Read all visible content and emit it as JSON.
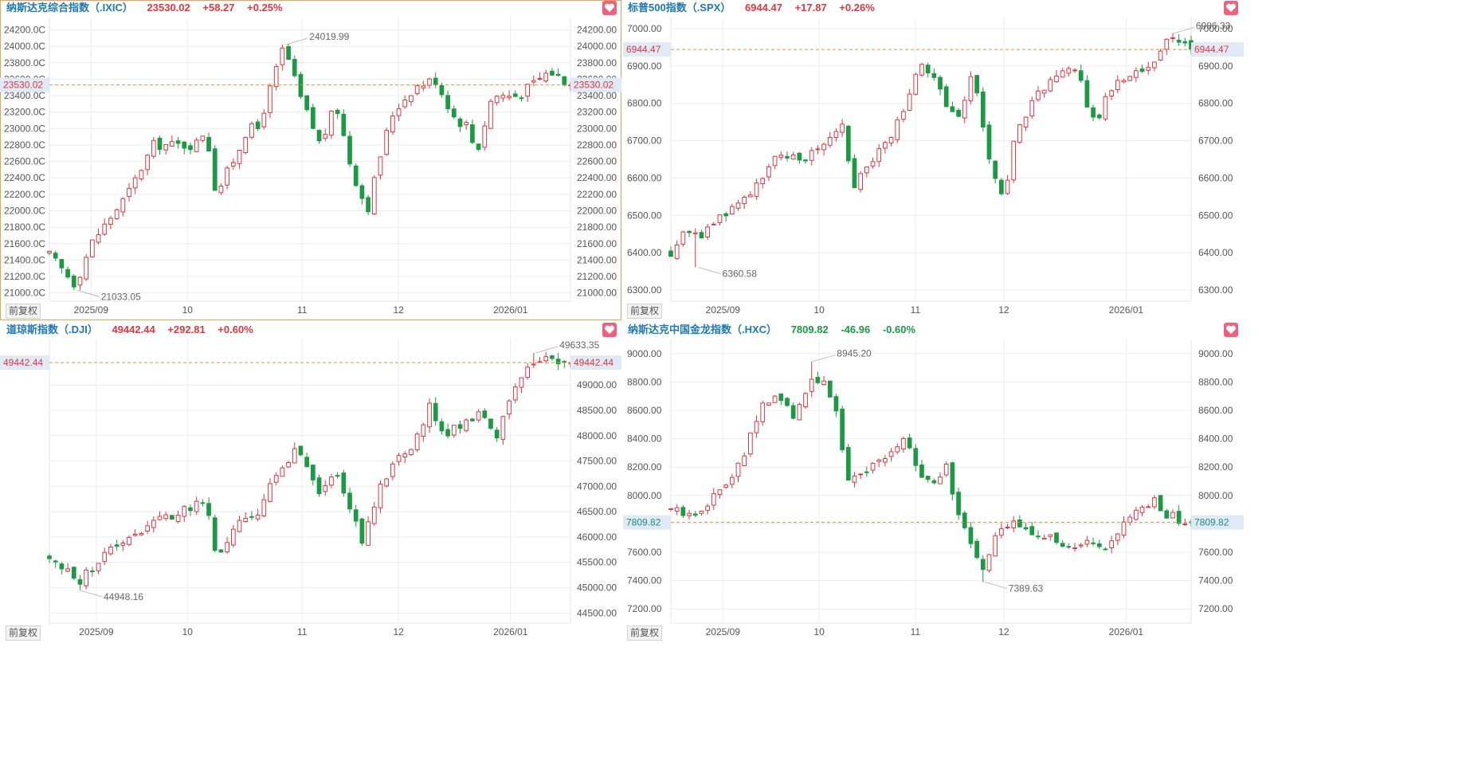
{
  "colors": {
    "up": "#e0363f",
    "down": "#1a9a43",
    "axis": "#555555",
    "grid": "#ececec",
    "ref": "#e0923a",
    "label_bg": "#dfeaf6"
  },
  "panels": [
    {
      "title": "纳斯达克综合指数（.IXIC）",
      "price": "23530.02",
      "change": "+58.27",
      "pct": "+0.25%",
      "direction": "up",
      "adj_button": "前复权",
      "favorite_icon": "heart-icon",
      "selected": true
    },
    {
      "title": "标普500指数（.SPX）",
      "price": "6944.47",
      "change": "+17.87",
      "pct": "+0.26%",
      "direction": "up",
      "adj_button": "前复权",
      "favorite_icon": "heart-icon",
      "selected": false
    },
    {
      "title": "道琼斯指数（.DJI）",
      "price": "49442.44",
      "change": "+292.81",
      "pct": "+0.60%",
      "direction": "up",
      "adj_button": "前复权",
      "favorite_icon": "heart-icon",
      "selected": false
    },
    {
      "title": "纳斯达克中国金龙指数（.HXC）",
      "price": "7809.82",
      "change": "-46.96",
      "pct": "-0.60%",
      "direction": "down",
      "adj_button": "前复权",
      "favorite_icon": "heart-icon",
      "selected": false
    }
  ],
  "chart_data": [
    {
      "type": "candlestick",
      "series_name": "纳斯达克综合指数（.IXIC）",
      "ylim": [
        20900,
        24350
      ],
      "y_ticks": [
        "24200.00",
        "24000.00",
        "23800.00",
        "23600.00",
        "23400.00",
        "23200.00",
        "23000.00",
        "22800.00",
        "22600.00",
        "22400.00",
        "22200.00",
        "22000.00",
        "21800.00",
        "21600.00",
        "21400.00",
        "21200.00",
        "21000.00"
      ],
      "left_tick_labels": [
        "24200.0C",
        "24000.0C",
        "23800.0C",
        "23600.0C",
        "23400.0C",
        "23200.0C",
        "23000.0C",
        "22800.0C",
        "22600.0C",
        "22400.0C",
        "22200.0C",
        "22000.0C",
        "21800.0C",
        "21600.0C",
        "21400.0C",
        "21200.0C",
        "21000.0C"
      ],
      "x_ticks": [
        "2025/09",
        "10",
        "11",
        "12",
        "2026/01"
      ],
      "x_tick_pos": [
        0.08,
        0.265,
        0.485,
        0.67,
        0.885
      ],
      "last_price": 23530.02,
      "last_price_label": "23530.02",
      "high_label": "24019.99",
      "high_value": 24019.99,
      "high_pos": 0.45,
      "low_label": "21033.05",
      "low_value": 21033.05,
      "low_pos": 0.05,
      "waypoints": [
        [
          0,
          21460
        ],
        [
          0.05,
          21100
        ],
        [
          0.08,
          21600
        ],
        [
          0.15,
          22200
        ],
        [
          0.2,
          22800
        ],
        [
          0.28,
          22800
        ],
        [
          0.3,
          23000
        ],
        [
          0.32,
          22200
        ],
        [
          0.36,
          22700
        ],
        [
          0.38,
          23000
        ],
        [
          0.4,
          23000
        ],
        [
          0.45,
          24010
        ],
        [
          0.48,
          23400
        ],
        [
          0.52,
          22800
        ],
        [
          0.55,
          23300
        ],
        [
          0.58,
          22500
        ],
        [
          0.61,
          22000
        ],
        [
          0.64,
          22800
        ],
        [
          0.66,
          23200
        ],
        [
          0.7,
          23500
        ],
        [
          0.74,
          23600
        ],
        [
          0.78,
          23100
        ],
        [
          0.8,
          23050
        ],
        [
          0.82,
          22700
        ],
        [
          0.85,
          23400
        ],
        [
          0.9,
          23400
        ],
        [
          0.96,
          23700
        ],
        [
          1,
          23530
        ]
      ]
    },
    {
      "type": "candlestick",
      "series_name": "标普500指数（.SPX）",
      "ylim": [
        6270,
        7030
      ],
      "y_ticks": [
        "7000.00",
        "6900.00",
        "6800.00",
        "6700.00",
        "6600.00",
        "6500.00",
        "6400.00",
        "6300.00"
      ],
      "left_tick_labels": [
        "7000.00",
        "6900.00",
        "6800.00",
        "6700.00",
        "6600.00",
        "6500.00",
        "6400.00",
        "6300.00"
      ],
      "x_ticks": [
        "2025/09",
        "10",
        "11",
        "12",
        "2026/01"
      ],
      "x_tick_pos": [
        0.1,
        0.285,
        0.47,
        0.64,
        0.875
      ],
      "last_price": 6944.47,
      "last_price_label": "6944.47",
      "high_label": "6986.33",
      "high_value": 6986.33,
      "high_pos": 0.96,
      "low_label": "6360.58",
      "low_value": 6360.58,
      "low_pos": 0.05,
      "waypoints": [
        [
          0,
          6400
        ],
        [
          0.03,
          6470
        ],
        [
          0.05,
          6440
        ],
        [
          0.1,
          6500
        ],
        [
          0.15,
          6560
        ],
        [
          0.2,
          6650
        ],
        [
          0.25,
          6650
        ],
        [
          0.3,
          6700
        ],
        [
          0.33,
          6750
        ],
        [
          0.35,
          6580
        ],
        [
          0.38,
          6640
        ],
        [
          0.42,
          6700
        ],
        [
          0.45,
          6800
        ],
        [
          0.48,
          6900
        ],
        [
          0.51,
          6850
        ],
        [
          0.55,
          6750
        ],
        [
          0.58,
          6880
        ],
        [
          0.61,
          6650
        ],
        [
          0.64,
          6540
        ],
        [
          0.66,
          6700
        ],
        [
          0.7,
          6820
        ],
        [
          0.74,
          6870
        ],
        [
          0.78,
          6900
        ],
        [
          0.8,
          6800
        ],
        [
          0.82,
          6750
        ],
        [
          0.84,
          6830
        ],
        [
          0.88,
          6880
        ],
        [
          0.92,
          6900
        ],
        [
          0.96,
          6980
        ],
        [
          1,
          6944
        ]
      ]
    },
    {
      "type": "candlestick",
      "series_name": "道琼斯指数（.DJI）",
      "ylim": [
        44300,
        49900
      ],
      "y_ticks": [
        "49000.00",
        "48500.00",
        "48000.00",
        "47500.00",
        "47000.00",
        "46500.00",
        "46000.00",
        "45500.00",
        "45000.00",
        "44500.00"
      ],
      "left_tick_labels": [],
      "x_ticks": [
        "2025/09",
        "10",
        "11",
        "12",
        "2026/01"
      ],
      "x_tick_pos": [
        0.09,
        0.265,
        0.485,
        0.67,
        0.885
      ],
      "last_price": 49442.44,
      "last_price_label": "49442.44",
      "high_label": "49633.35",
      "high_value": 49633.35,
      "high_pos": 0.93,
      "low_label": "44948.16",
      "low_value": 44948.16,
      "low_pos": 0.055,
      "waypoints": [
        [
          0,
          45600
        ],
        [
          0.055,
          45100
        ],
        [
          0.1,
          45600
        ],
        [
          0.15,
          46000
        ],
        [
          0.2,
          46300
        ],
        [
          0.25,
          46500
        ],
        [
          0.3,
          46700
        ],
        [
          0.32,
          45600
        ],
        [
          0.36,
          46200
        ],
        [
          0.4,
          46500
        ],
        [
          0.44,
          47300
        ],
        [
          0.47,
          47700
        ],
        [
          0.5,
          47300
        ],
        [
          0.52,
          46700
        ],
        [
          0.55,
          47400
        ],
        [
          0.58,
          46500
        ],
        [
          0.6,
          45900
        ],
        [
          0.63,
          46900
        ],
        [
          0.66,
          47500
        ],
        [
          0.7,
          47800
        ],
        [
          0.73,
          48600
        ],
        [
          0.76,
          48000
        ],
        [
          0.8,
          48300
        ],
        [
          0.83,
          48500
        ],
        [
          0.86,
          48000
        ],
        [
          0.9,
          49100
        ],
        [
          0.94,
          49500
        ],
        [
          1,
          49442
        ]
      ]
    },
    {
      "type": "candlestick",
      "series_name": "纳斯达克中国金龙指数（.HXC）",
      "ylim": [
        7100,
        9100
      ],
      "y_ticks": [
        "9000.00",
        "8800.00",
        "8600.00",
        "8400.00",
        "8200.00",
        "8000.00",
        "7800.00",
        "7600.00",
        "7400.00",
        "7200.00"
      ],
      "left_tick_labels": [
        "9000.00",
        "8800.00",
        "8600.00",
        "8400.00",
        "8200.00",
        "8000.00",
        "7600.00",
        "7400.00",
        "7200.00"
      ],
      "x_ticks": [
        "2025/09",
        "10",
        "11",
        "12",
        "2026/01"
      ],
      "x_tick_pos": [
        0.1,
        0.285,
        0.47,
        0.64,
        0.875
      ],
      "last_price": 7809.82,
      "last_price_label": "7809.82",
      "high_label": "8945.20",
      "high_value": 8945.2,
      "high_pos": 0.27,
      "low_label": "7389.63",
      "low_value": 7389.63,
      "low_pos": 0.6,
      "waypoints": [
        [
          0,
          7900
        ],
        [
          0.04,
          7850
        ],
        [
          0.07,
          7950
        ],
        [
          0.1,
          8050
        ],
        [
          0.14,
          8300
        ],
        [
          0.17,
          8600
        ],
        [
          0.2,
          8700
        ],
        [
          0.24,
          8550
        ],
        [
          0.27,
          8800
        ],
        [
          0.3,
          8800
        ],
        [
          0.32,
          8550
        ],
        [
          0.34,
          8100
        ],
        [
          0.38,
          8200
        ],
        [
          0.42,
          8300
        ],
        [
          0.45,
          8400
        ],
        [
          0.47,
          8200
        ],
        [
          0.5,
          8100
        ],
        [
          0.53,
          8200
        ],
        [
          0.55,
          7900
        ],
        [
          0.57,
          7700
        ],
        [
          0.6,
          7450
        ],
        [
          0.62,
          7700
        ],
        [
          0.66,
          7800
        ],
        [
          0.7,
          7750
        ],
        [
          0.73,
          7700
        ],
        [
          0.76,
          7600
        ],
        [
          0.8,
          7650
        ],
        [
          0.84,
          7600
        ],
        [
          0.87,
          7800
        ],
        [
          0.9,
          7900
        ],
        [
          0.93,
          7950
        ],
        [
          0.96,
          7850
        ],
        [
          1,
          7810
        ]
      ]
    }
  ]
}
